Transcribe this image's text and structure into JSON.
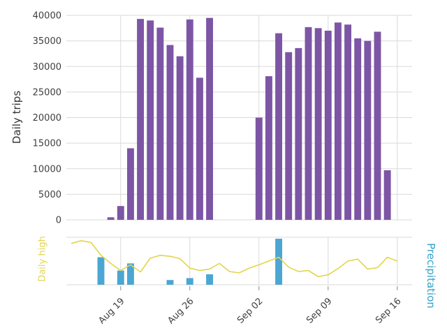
{
  "figure": {
    "background": "#ffffff",
    "grid_color": "#d9d9d9",
    "tick_text_color": "#3f3f3f"
  },
  "chart_data": {
    "type": "multi-panel",
    "grid": true,
    "x_axis": {
      "dates": [
        "Aug 14",
        "Aug 15",
        "Aug 16",
        "Aug 17",
        "Aug 18",
        "Aug 19",
        "Aug 20",
        "Aug 21",
        "Aug 22",
        "Aug 23",
        "Aug 24",
        "Aug 25",
        "Aug 26",
        "Aug 27",
        "Aug 28",
        "Aug 29",
        "Aug 30",
        "Aug 31",
        "Sep 01",
        "Sep 02",
        "Sep 03",
        "Sep 04",
        "Sep 05",
        "Sep 06",
        "Sep 07",
        "Sep 08",
        "Sep 09",
        "Sep 10",
        "Sep 11",
        "Sep 12",
        "Sep 13",
        "Sep 14",
        "Sep 15",
        "Sep 16"
      ],
      "ticks": [
        "Aug 19",
        "Aug 26",
        "Sep 02",
        "Sep 09",
        "Sep 16"
      ]
    },
    "trips": {
      "type": "bar",
      "ylabel": "Daily trips",
      "color": "#7d55a5",
      "ylim": [
        0,
        40000
      ],
      "yticks": [
        0,
        5000,
        10000,
        15000,
        20000,
        25000,
        30000,
        35000,
        40000
      ],
      "dates": [
        "Aug 18",
        "Aug 19",
        "Aug 20",
        "Aug 21",
        "Aug 22",
        "Aug 23",
        "Aug 24",
        "Aug 25",
        "Aug 26",
        "Aug 27",
        "Aug 28",
        "Sep 02",
        "Sep 03",
        "Sep 04",
        "Sep 05",
        "Sep 06",
        "Sep 07",
        "Sep 08",
        "Sep 09",
        "Sep 10",
        "Sep 11",
        "Sep 12",
        "Sep 13",
        "Sep 14",
        "Sep 15"
      ],
      "values": [
        500,
        2700,
        14000,
        39300,
        39000,
        37600,
        34200,
        32000,
        39200,
        27800,
        39500,
        20000,
        28100,
        36500,
        32800,
        33600,
        37700,
        37500,
        37000,
        38600,
        38200,
        35500,
        35000,
        36800,
        9700
      ]
    },
    "daily_high": {
      "type": "line",
      "label": "Daily high",
      "color": "#e3d44c",
      "scale": "relative 0-1, no numeric axis shown",
      "values": [
        0.87,
        0.93,
        0.89,
        0.62,
        0.45,
        0.3,
        0.42,
        0.27,
        0.56,
        0.62,
        0.6,
        0.55,
        0.35,
        0.3,
        0.33,
        0.45,
        0.28,
        0.25,
        0.35,
        0.42,
        0.5,
        0.58,
        0.37,
        0.28,
        0.3,
        0.17,
        0.21,
        0.34,
        0.5,
        0.54,
        0.33,
        0.36,
        0.58,
        0.5
      ]
    },
    "precipitation": {
      "type": "bar",
      "label": "Precipitation",
      "color": "#4ba6d3",
      "label_color": "#36a2cb",
      "scale": "relative 0-1, no numeric axis shown",
      "dates": [
        "Aug 17",
        "Aug 19",
        "Aug 20",
        "Aug 24",
        "Aug 26",
        "Aug 28",
        "Sep 04"
      ],
      "values": [
        0.58,
        0.3,
        0.45,
        0.1,
        0.14,
        0.22,
        0.97
      ]
    }
  }
}
